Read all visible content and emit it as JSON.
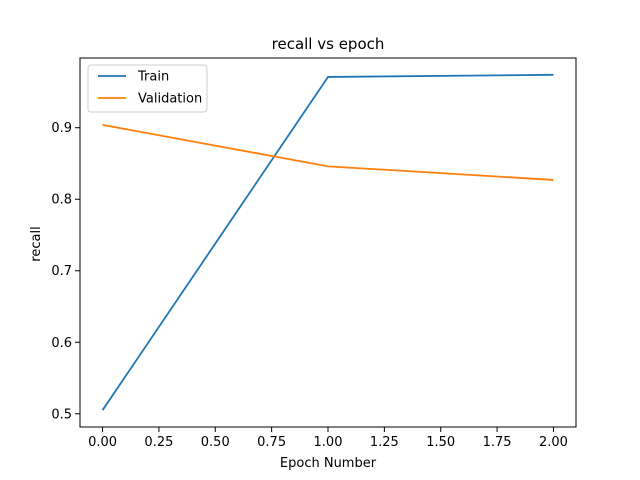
{
  "chart_data": {
    "type": "line",
    "title": "recall vs epoch",
    "xlabel": "Epoch Number",
    "ylabel": "recall",
    "x": [
      0,
      1,
      2
    ],
    "xlim": [
      -0.1,
      2.1
    ],
    "ylim": [
      0.4815,
      0.9975
    ],
    "xticks": [
      0.0,
      0.25,
      0.5,
      0.75,
      1.0,
      1.25,
      1.5,
      1.75,
      2.0
    ],
    "xtick_labels": [
      "0.00",
      "0.25",
      "0.50",
      "0.75",
      "1.00",
      "1.25",
      "1.50",
      "1.75",
      "2.00"
    ],
    "yticks": [
      0.5,
      0.6,
      0.7,
      0.8,
      0.9
    ],
    "ytick_labels": [
      "0.5",
      "0.6",
      "0.7",
      "0.8",
      "0.9"
    ],
    "legend_position": "top-left",
    "grid": false,
    "series": [
      {
        "name": "Train",
        "color": "#1f77b4",
        "values": [
          0.505,
          0.971,
          0.974
        ]
      },
      {
        "name": "Validation",
        "color": "#ff7f0e",
        "values": [
          0.904,
          0.846,
          0.827
        ]
      }
    ]
  }
}
